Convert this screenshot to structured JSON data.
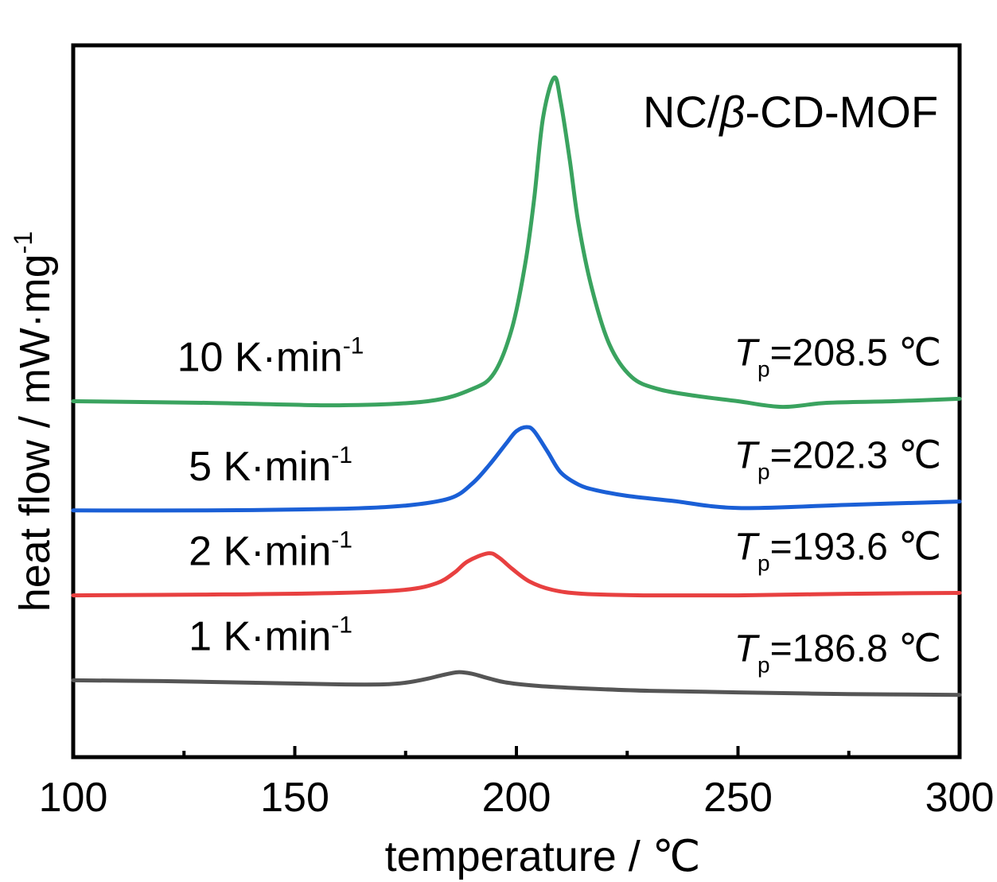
{
  "chart_data": {
    "type": "line",
    "title": "NC/β-CD-MOF",
    "title_parts": {
      "pre": "NC/",
      "italic": "β",
      "post": "-CD-MOF"
    },
    "xlabel": "temperature / ℃",
    "ylabel": "heat flow / mW·mg",
    "ylabel_sup": "-1",
    "xlim": [
      100,
      300
    ],
    "x_ticks": [
      100,
      150,
      200,
      250,
      300
    ],
    "x_tick_labels": [
      "100",
      "150",
      "200",
      "250",
      "300"
    ],
    "x_minor_ticks": [
      125,
      175,
      225,
      275
    ],
    "y_ticks_shown": false,
    "grid": false,
    "legend": "none",
    "series": [
      {
        "name": "1 K·min-1",
        "label": {
          "main": "1 K·min",
          "sup": "-1"
        },
        "color": "#555555",
        "peak_annotation": {
          "T": "T",
          "sub": "p",
          "text": "=186.8 ℃"
        },
        "x": [
          100,
          120,
          140,
          160,
          170,
          175,
          180,
          183,
          186.8,
          190,
          194,
          198,
          205,
          215,
          230,
          250,
          275,
          300
        ],
        "y": [
          -2.55,
          -2.56,
          -2.58,
          -2.6,
          -2.6,
          -2.58,
          -2.53,
          -2.49,
          -2.45,
          -2.47,
          -2.53,
          -2.58,
          -2.62,
          -2.65,
          -2.68,
          -2.7,
          -2.72,
          -2.73
        ]
      },
      {
        "name": "2 K·min-1",
        "label": {
          "main": "2 K·min",
          "sup": "-1"
        },
        "color": "#e84040",
        "peak_annotation": {
          "T": "T",
          "sub": "p",
          "text": "=193.6 ℃"
        },
        "x": [
          100,
          130,
          160,
          175,
          182,
          186,
          189,
          193.6,
          196,
          199,
          203,
          208,
          215,
          230,
          250,
          275,
          300
        ],
        "y": [
          -1.5,
          -1.49,
          -1.47,
          -1.43,
          -1.35,
          -1.22,
          -1.08,
          -0.98,
          -1.03,
          -1.17,
          -1.33,
          -1.43,
          -1.48,
          -1.5,
          -1.5,
          -1.48,
          -1.47
        ]
      },
      {
        "name": "5 K·min-1",
        "label": {
          "main": "5 K·min",
          "sup": "-1"
        },
        "color": "#1a5fd6",
        "peak_annotation": {
          "T": "T",
          "sub": "p",
          "text": "=202.3 ℃"
        },
        "x": [
          100,
          130,
          160,
          175,
          185,
          190,
          194,
          198,
          200,
          202.3,
          204,
          207,
          210,
          214,
          218,
          225,
          235,
          250,
          275,
          300
        ],
        "y": [
          -0.45,
          -0.45,
          -0.43,
          -0.39,
          -0.3,
          -0.12,
          0.12,
          0.4,
          0.53,
          0.58,
          0.53,
          0.28,
          0.02,
          -0.13,
          -0.2,
          -0.27,
          -0.33,
          -0.42,
          -0.38,
          -0.34
        ]
      },
      {
        "name": "10 K·min-1",
        "label": {
          "main": "10 K·min",
          "sup": "-1"
        },
        "color": "#3aa35f",
        "peak_annotation": {
          "T": "T",
          "sub": "p",
          "text": "=208.5 ℃"
        },
        "x": [
          100,
          130,
          160,
          180,
          190,
          195,
          199,
          202,
          204,
          206,
          208.5,
          210,
          212,
          214,
          217,
          221,
          226,
          232,
          240,
          250,
          260,
          270,
          285,
          300
        ],
        "y": [
          0.9,
          0.88,
          0.85,
          0.9,
          1.05,
          1.25,
          1.8,
          2.6,
          3.4,
          4.4,
          4.9,
          4.6,
          3.9,
          3.1,
          2.3,
          1.6,
          1.2,
          1.05,
          0.97,
          0.9,
          0.83,
          0.88,
          0.9,
          0.93
        ]
      }
    ]
  }
}
